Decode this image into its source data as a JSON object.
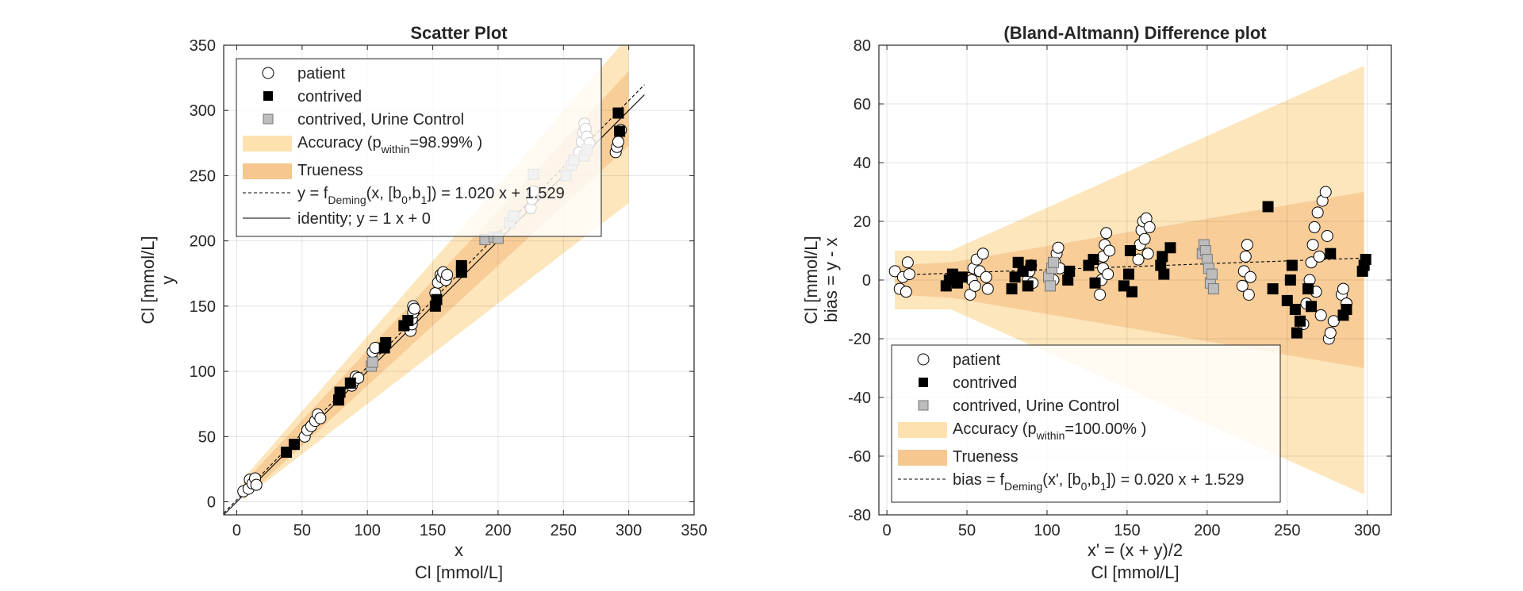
{
  "chart_data": [
    {
      "type": "scatter",
      "title": "Scatter Plot",
      "xlabel": [
        "x",
        "Cl [mmol/L]"
      ],
      "ylabel": [
        "Cl [mmol/L]",
        "y"
      ],
      "xlim": [
        -10,
        350
      ],
      "ylim": [
        -10,
        350
      ],
      "xticks": [
        "0",
        "50",
        "100",
        "150",
        "200",
        "250",
        "300",
        "350"
      ],
      "yticks": [
        "0",
        "50",
        "100",
        "150",
        "200",
        "250",
        "300",
        "350"
      ],
      "grid": true,
      "legend_position": "top-left",
      "colors": {
        "accuracy": "#fde2b0",
        "trueness": "#f6c78e",
        "contrived": "#000000",
        "urine": "#bdbdbd",
        "patient_fill": "#ffffff"
      },
      "legend": {
        "patient": "patient",
        "contrived": "contrived",
        "urine": "contrived, Urine Control",
        "accuracy_prefix": "Accuracy (p",
        "accuracy_sub": "within",
        "accuracy_suffix": "=98.99% )",
        "trueness": "Trueness",
        "fit_a": "y = f",
        "fit_sub1": "Deming",
        "fit_b": "(x, [b",
        "fit_sub2": "0",
        "fit_c": ",b",
        "fit_sub3": "1",
        "fit_d": "]) = 1.020 x + 1.529",
        "identity": "identity; y = 1 x + 0"
      },
      "fit": {
        "slope": 1.02,
        "intercept": 1.529
      },
      "identity": {
        "slope": 1,
        "intercept": 0
      },
      "x_range": [
        -10,
        312
      ],
      "bands": {
        "accuracy": {
          "x_start": 5,
          "x_end": 300,
          "upper_slope": 1.15,
          "upper_intercept": 12,
          "lower_slope": 0.77,
          "lower_intercept": -2
        },
        "trueness": {
          "x_start": 5,
          "x_end": 300,
          "upper_slope": 1.07,
          "upper_intercept": 9,
          "lower_slope": 0.92,
          "lower_intercept": -3
        }
      },
      "series": [
        {
          "name": "patient",
          "marker": "circle",
          "points": [
            [
              5,
              8
            ],
            [
              9,
              10
            ],
            [
              10,
              17
            ],
            [
              12,
              14
            ],
            [
              14,
              18
            ],
            [
              15,
              13
            ],
            [
              52,
              50
            ],
            [
              54,
              55
            ],
            [
              57,
              58
            ],
            [
              60,
              62
            ],
            [
              62,
              67
            ],
            [
              64,
              64
            ],
            [
              88,
              89
            ],
            [
              90,
              93
            ],
            [
              91,
              96
            ],
            [
              93,
              95
            ],
            [
              104,
              115
            ],
            [
              106,
              118
            ],
            [
              133,
              131
            ],
            [
              134,
              136
            ],
            [
              134,
              140
            ],
            [
              135,
              145
            ],
            [
              135,
              150
            ],
            [
              136,
              148
            ],
            [
              152,
              160
            ],
            [
              154,
              168
            ],
            [
              156,
              174
            ],
            [
              157,
              172
            ],
            [
              158,
              176
            ],
            [
              160,
              170
            ],
            [
              161,
              174
            ],
            [
              225,
              225
            ],
            [
              226,
              232
            ],
            [
              227,
              238
            ],
            [
              262,
              268
            ],
            [
              264,
              276
            ],
            [
              265,
              283
            ],
            [
              266,
              290
            ],
            [
              267,
              286
            ],
            [
              268,
              280
            ],
            [
              270,
              275
            ],
            [
              290,
              268
            ],
            [
              291,
              272
            ],
            [
              292,
              276
            ],
            [
              294,
              285
            ]
          ]
        },
        {
          "name": "contrived",
          "marker": "square",
          "points": [
            [
              38,
              38
            ],
            [
              44,
              44
            ],
            [
              78,
              78
            ],
            [
              79,
              84
            ],
            [
              87,
              91
            ],
            [
              113,
              118
            ],
            [
              114,
              122
            ],
            [
              128,
              135
            ],
            [
              131,
              139
            ],
            [
              152,
              150
            ],
            [
              153,
              155
            ],
            [
              172,
              176
            ],
            [
              172,
              181
            ],
            [
              292,
              298
            ],
            [
              293,
              284
            ]
          ]
        },
        {
          "name": "contrived, Urine Control",
          "marker": "square",
          "points": [
            [
              103,
              104
            ],
            [
              104,
              107
            ],
            [
              190,
              201
            ],
            [
              197,
              203
            ],
            [
              200,
              202
            ],
            [
              209,
              214
            ],
            [
              212,
              219
            ],
            [
              227,
              251
            ],
            [
              252,
              250
            ],
            [
              256,
              258
            ],
            [
              258,
              262
            ],
            [
              266,
              265
            ],
            [
              268,
              270
            ]
          ]
        }
      ]
    },
    {
      "type": "scatter",
      "title": "(Bland-Altmann) Difference plot",
      "xlabel": [
        "x' = (x + y)/2",
        "Cl [mmol/L]"
      ],
      "ylabel": [
        "Cl [mmol/L]",
        "bias = y - x"
      ],
      "xlim": [
        -5,
        315
      ],
      "ylim": [
        -80,
        80
      ],
      "xticks": [
        "0",
        "50",
        "100",
        "150",
        "200",
        "250",
        "300"
      ],
      "yticks": [
        "-80",
        "-60",
        "-40",
        "-20",
        "0",
        "20",
        "40",
        "60",
        "80"
      ],
      "grid": true,
      "legend_position": "bottom-left",
      "colors": {
        "accuracy": "#fde2b0",
        "trueness": "#f6c78e",
        "contrived": "#000000",
        "urine": "#bdbdbd",
        "patient_fill": "#ffffff"
      },
      "legend": {
        "patient": "patient",
        "contrived": "contrived",
        "urine": "contrived, Urine Control",
        "accuracy_prefix": "Accuracy (p",
        "accuracy_sub": "within",
        "accuracy_suffix": "=100.00% )",
        "trueness": "Trueness",
        "fit_a": "bias = f",
        "fit_sub1": "Deming",
        "fit_b": "(x', [b",
        "fit_sub2": "0",
        "fit_c": ",b",
        "fit_sub3": "1",
        "fit_d": "]) = 0.020 x + 1.529"
      },
      "fit": {
        "slope": 0.02,
        "intercept": 1.529,
        "x_range": [
          5,
          298
        ]
      },
      "bands": {
        "accuracy": [
          [
            5,
            10
          ],
          [
            40,
            10
          ],
          [
            298,
            73
          ],
          [
            298,
            -73
          ],
          [
            40,
            -10
          ],
          [
            5,
            -10
          ]
        ],
        "trueness": [
          [
            5,
            5
          ],
          [
            40,
            6
          ],
          [
            298,
            30
          ],
          [
            298,
            -30
          ],
          [
            40,
            -6
          ],
          [
            5,
            -5
          ]
        ]
      },
      "series": [
        {
          "name": "patient",
          "marker": "circle",
          "points": [
            [
              5,
              3
            ],
            [
              8,
              -3
            ],
            [
              10,
              1
            ],
            [
              12,
              -4
            ],
            [
              13,
              6
            ],
            [
              14,
              2
            ],
            [
              52,
              -5
            ],
            [
              53,
              0
            ],
            [
              54,
              4
            ],
            [
              55,
              -2
            ],
            [
              56,
              7
            ],
            [
              58,
              3
            ],
            [
              60,
              9
            ],
            [
              62,
              1
            ],
            [
              63,
              -3
            ],
            [
              88,
              0
            ],
            [
              89,
              3
            ],
            [
              90,
              5
            ],
            [
              91,
              -1
            ],
            [
              104,
              0
            ],
            [
              105,
              6
            ],
            [
              106,
              9
            ],
            [
              107,
              11
            ],
            [
              108,
              4
            ],
            [
              133,
              -5
            ],
            [
              134,
              0
            ],
            [
              135,
              4
            ],
            [
              135,
              8
            ],
            [
              136,
              12
            ],
            [
              137,
              16
            ],
            [
              138,
              2
            ],
            [
              139,
              10
            ],
            [
              157,
              7
            ],
            [
              158,
              12
            ],
            [
              159,
              17
            ],
            [
              160,
              20
            ],
            [
              161,
              14
            ],
            [
              162,
              21
            ],
            [
              163,
              9
            ],
            [
              164,
              18
            ],
            [
              222,
              -2
            ],
            [
              223,
              3
            ],
            [
              224,
              8
            ],
            [
              225,
              12
            ],
            [
              226,
              -5
            ],
            [
              227,
              1
            ],
            [
              260,
              -15
            ],
            [
              262,
              -8
            ],
            [
              264,
              0
            ],
            [
              265,
              6
            ],
            [
              266,
              12
            ],
            [
              267,
              18
            ],
            [
              268,
              -4
            ],
            [
              269,
              23
            ],
            [
              270,
              8
            ],
            [
              271,
              -12
            ],
            [
              272,
              27
            ],
            [
              274,
              30
            ],
            [
              275,
              15
            ],
            [
              276,
              -20
            ],
            [
              277,
              -18
            ],
            [
              279,
              -14
            ],
            [
              284,
              -5
            ],
            [
              285,
              -3
            ],
            [
              287,
              -8
            ]
          ]
        },
        {
          "name": "contrived",
          "marker": "square",
          "points": [
            [
              37,
              -2
            ],
            [
              39,
              0
            ],
            [
              41,
              2
            ],
            [
              44,
              -1
            ],
            [
              47,
              1
            ],
            [
              78,
              -3
            ],
            [
              80,
              1
            ],
            [
              82,
              6
            ],
            [
              85,
              3
            ],
            [
              88,
              -2
            ],
            [
              90,
              5
            ],
            [
              113,
              0
            ],
            [
              114,
              3
            ],
            [
              126,
              5
            ],
            [
              129,
              7
            ],
            [
              130,
              -1
            ],
            [
              148,
              -2
            ],
            [
              151,
              2
            ],
            [
              152,
              10
            ],
            [
              153,
              -4
            ],
            [
              171,
              5
            ],
            [
              172,
              8
            ],
            [
              173,
              2
            ],
            [
              177,
              11
            ],
            [
              238,
              25
            ],
            [
              241,
              -3
            ],
            [
              250,
              -7
            ],
            [
              252,
              0
            ],
            [
              253,
              5
            ],
            [
              255,
              -10
            ],
            [
              256,
              -18
            ],
            [
              258,
              -14
            ],
            [
              263,
              -3
            ],
            [
              265,
              -9
            ],
            [
              277,
              9
            ],
            [
              285,
              -12
            ],
            [
              287,
              -10
            ],
            [
              297,
              3
            ],
            [
              298,
              5
            ],
            [
              299,
              7
            ]
          ]
        },
        {
          "name": "contrived, Urine Control",
          "marker": "square",
          "points": [
            [
              101,
              1
            ],
            [
              102,
              -2
            ],
            [
              103,
              4
            ],
            [
              104,
              6
            ],
            [
              197,
              9
            ],
            [
              198,
              12
            ],
            [
              199,
              10
            ],
            [
              200,
              7
            ],
            [
              201,
              4
            ],
            [
              202,
              -1
            ],
            [
              203,
              2
            ],
            [
              204,
              -3
            ]
          ]
        }
      ]
    }
  ]
}
